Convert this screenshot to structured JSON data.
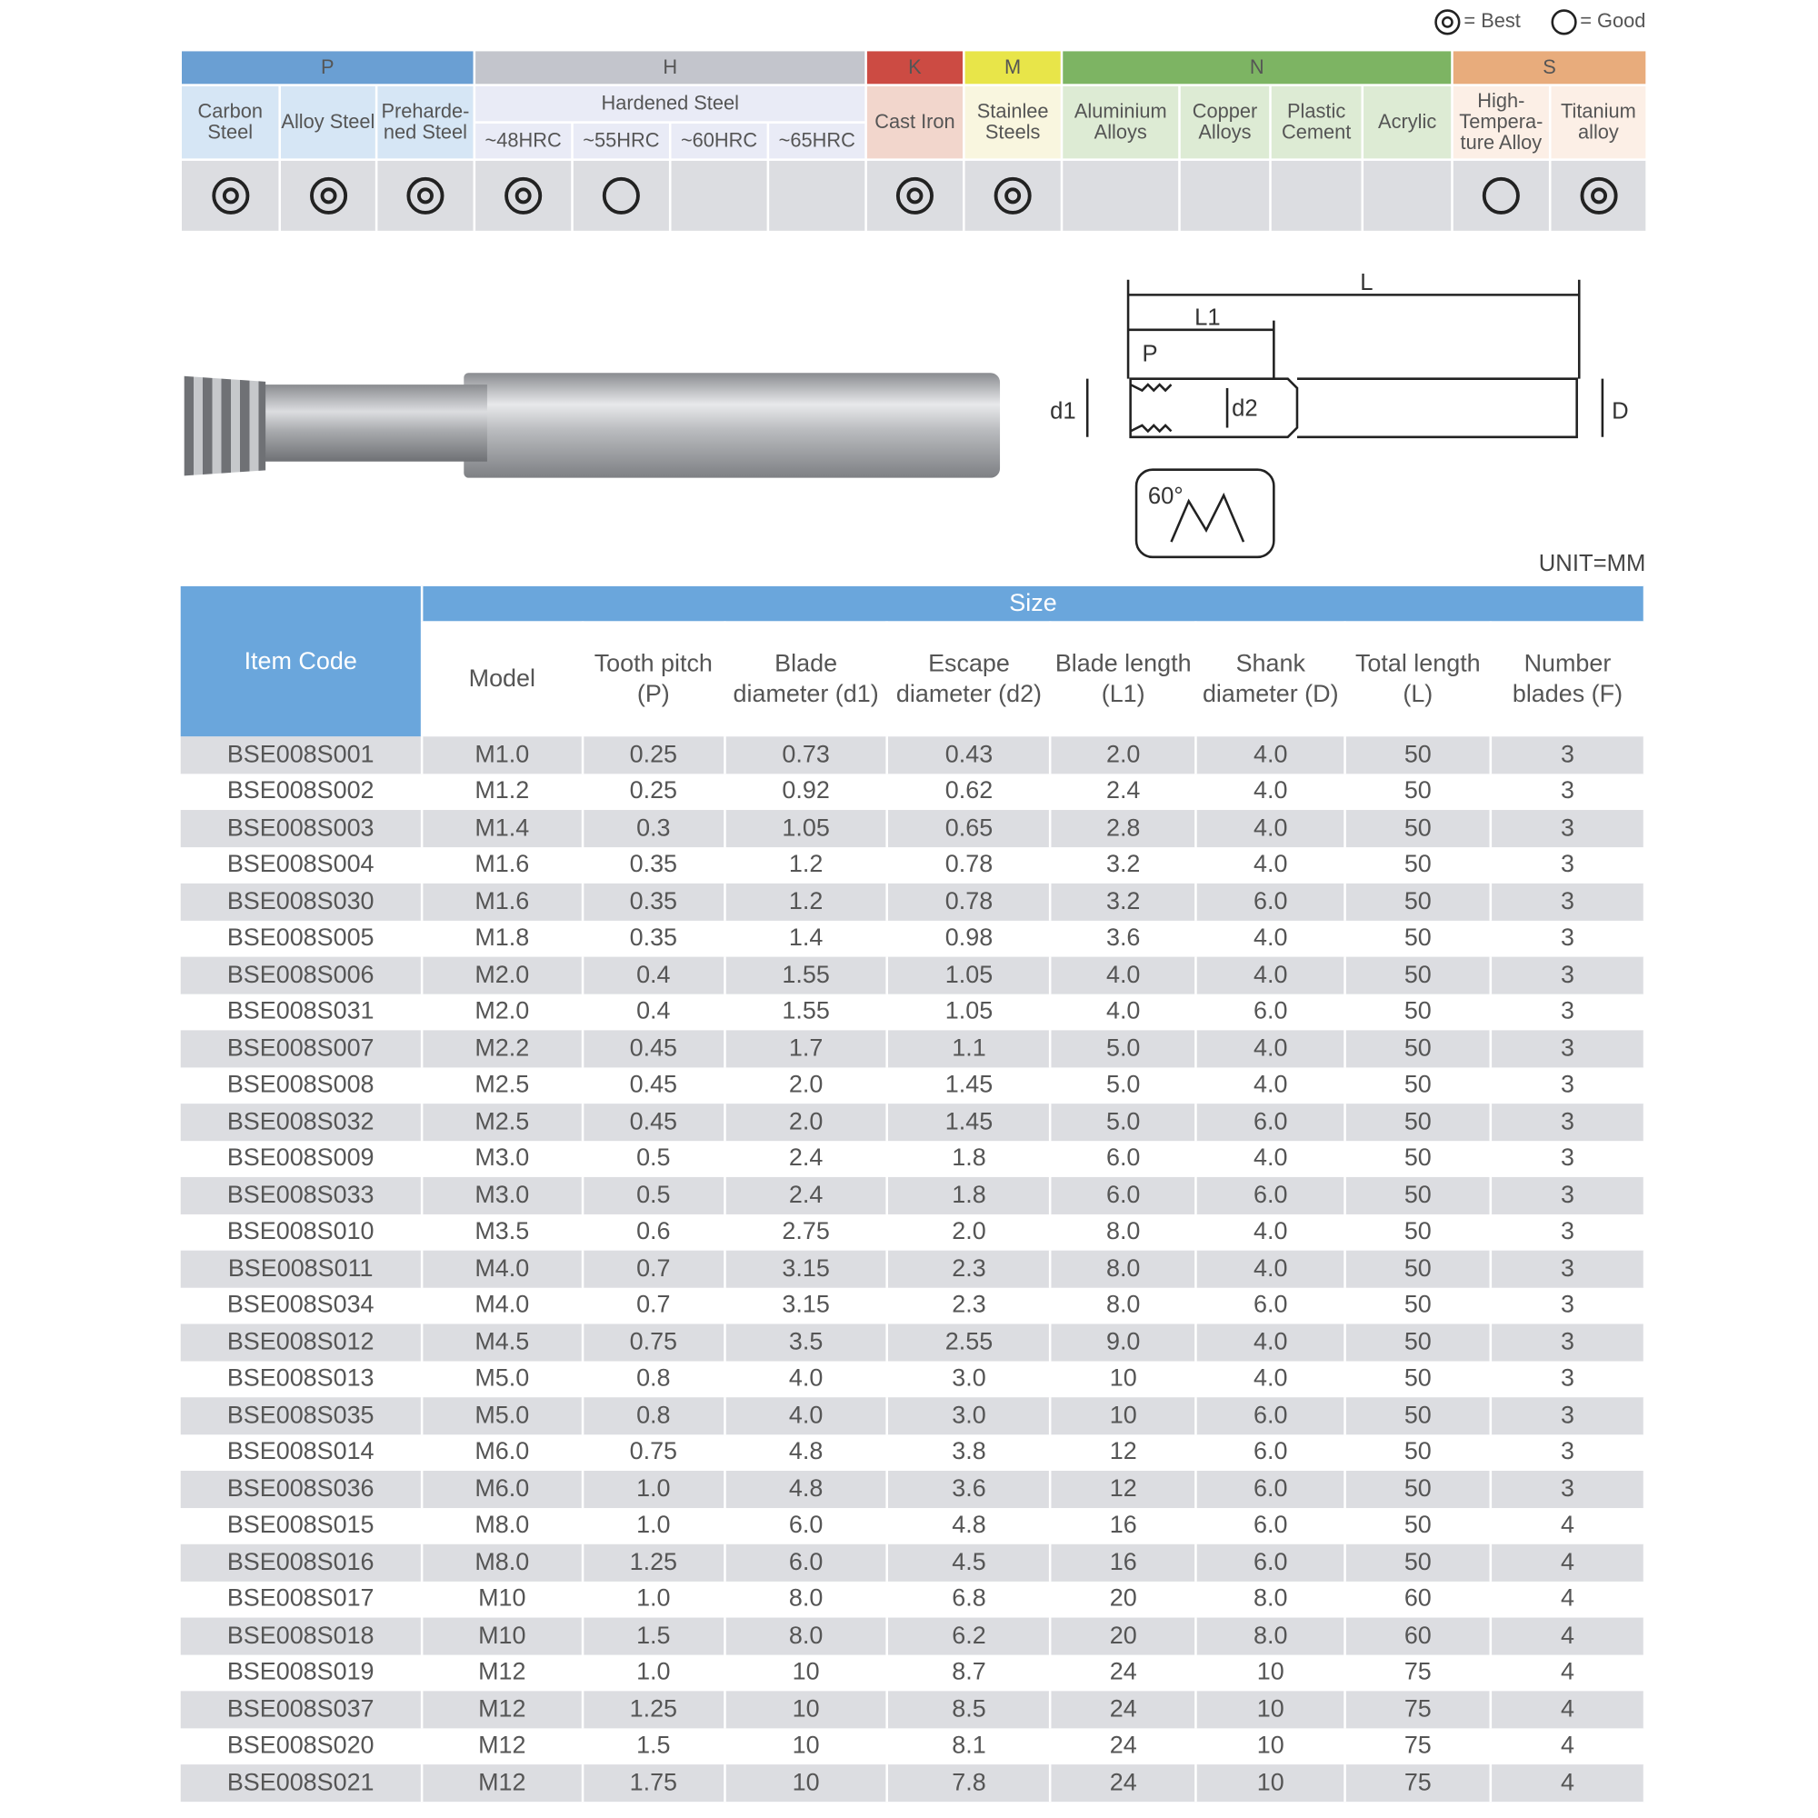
{
  "legend": {
    "best": "= Best",
    "good": "= Good"
  },
  "materials": {
    "groups": [
      {
        "label": "P",
        "color": "#6a9fd3"
      },
      {
        "label": "H",
        "color": "#c3c5cc"
      },
      {
        "label": "K",
        "color": "#cc4b43"
      },
      {
        "label": "M",
        "color": "#e8e549"
      },
      {
        "label": "N",
        "color": "#7db463"
      },
      {
        "label": "S",
        "color": "#e8ac7c"
      }
    ],
    "hardened_label": "Hardened Steel",
    "columns": [
      {
        "label": "Carbon Steel",
        "rating": "best"
      },
      {
        "label": "Alloy Steel",
        "rating": "best"
      },
      {
        "label": "Preharde-ned Steel",
        "rating": "best"
      },
      {
        "label": "~48HRC",
        "rating": "best"
      },
      {
        "label": "~55HRC",
        "rating": "good"
      },
      {
        "label": "~60HRC",
        "rating": ""
      },
      {
        "label": "~65HRC",
        "rating": ""
      },
      {
        "label": "Cast Iron",
        "rating": "best"
      },
      {
        "label": "Stainlee Steels",
        "rating": "best"
      },
      {
        "label": "Aluminium Alloys",
        "rating": ""
      },
      {
        "label": "Copper Alloys",
        "rating": ""
      },
      {
        "label": "Plastic Cement",
        "rating": ""
      },
      {
        "label": "Acrylic",
        "rating": ""
      },
      {
        "label": "High-Tempera-ture Alloy",
        "rating": "good"
      },
      {
        "label": "Titanium alloy",
        "rating": "best"
      }
    ]
  },
  "diagram": {
    "L": "L",
    "L1": "L1",
    "P": "P",
    "d1": "d1",
    "d2": "d2",
    "D": "D",
    "angle": "60°"
  },
  "unit": "UNIT=MM",
  "table": {
    "item_code": "Item Code",
    "size": "Size",
    "headers": [
      "Model",
      "Tooth pitch (P)",
      "Blade diameter (d1)",
      "Escape diameter (d2)",
      "Blade length (L1)",
      "Shank diameter (D)",
      "Total length (L)",
      "Number blades (F)"
    ],
    "rows": [
      [
        "BSE008S001",
        "M1.0",
        "0.25",
        "0.73",
        "0.43",
        "2.0",
        "4.0",
        "50",
        "3"
      ],
      [
        "BSE008S002",
        "M1.2",
        "0.25",
        "0.92",
        "0.62",
        "2.4",
        "4.0",
        "50",
        "3"
      ],
      [
        "BSE008S003",
        "M1.4",
        "0.3",
        "1.05",
        "0.65",
        "2.8",
        "4.0",
        "50",
        "3"
      ],
      [
        "BSE008S004",
        "M1.6",
        "0.35",
        "1.2",
        "0.78",
        "3.2",
        "4.0",
        "50",
        "3"
      ],
      [
        "BSE008S030",
        "M1.6",
        "0.35",
        "1.2",
        "0.78",
        "3.2",
        "6.0",
        "50",
        "3"
      ],
      [
        "BSE008S005",
        "M1.8",
        "0.35",
        "1.4",
        "0.98",
        "3.6",
        "4.0",
        "50",
        "3"
      ],
      [
        "BSE008S006",
        "M2.0",
        "0.4",
        "1.55",
        "1.05",
        "4.0",
        "4.0",
        "50",
        "3"
      ],
      [
        "BSE008S031",
        "M2.0",
        "0.4",
        "1.55",
        "1.05",
        "4.0",
        "6.0",
        "50",
        "3"
      ],
      [
        "BSE008S007",
        "M2.2",
        "0.45",
        "1.7",
        "1.1",
        "5.0",
        "4.0",
        "50",
        "3"
      ],
      [
        "BSE008S008",
        "M2.5",
        "0.45",
        "2.0",
        "1.45",
        "5.0",
        "4.0",
        "50",
        "3"
      ],
      [
        "BSE008S032",
        "M2.5",
        "0.45",
        "2.0",
        "1.45",
        "5.0",
        "6.0",
        "50",
        "3"
      ],
      [
        "BSE008S009",
        "M3.0",
        "0.5",
        "2.4",
        "1.8",
        "6.0",
        "4.0",
        "50",
        "3"
      ],
      [
        "BSE008S033",
        "M3.0",
        "0.5",
        "2.4",
        "1.8",
        "6.0",
        "6.0",
        "50",
        "3"
      ],
      [
        "BSE008S010",
        "M3.5",
        "0.6",
        "2.75",
        "2.0",
        "8.0",
        "4.0",
        "50",
        "3"
      ],
      [
        "BSE008S011",
        "M4.0",
        "0.7",
        "3.15",
        "2.3",
        "8.0",
        "4.0",
        "50",
        "3"
      ],
      [
        "BSE008S034",
        "M4.0",
        "0.7",
        "3.15",
        "2.3",
        "8.0",
        "6.0",
        "50",
        "3"
      ],
      [
        "BSE008S012",
        "M4.5",
        "0.75",
        "3.5",
        "2.55",
        "9.0",
        "4.0",
        "50",
        "3"
      ],
      [
        "BSE008S013",
        "M5.0",
        "0.8",
        "4.0",
        "3.0",
        "10",
        "4.0",
        "50",
        "3"
      ],
      [
        "BSE008S035",
        "M5.0",
        "0.8",
        "4.0",
        "3.0",
        "10",
        "6.0",
        "50",
        "3"
      ],
      [
        "BSE008S014",
        "M6.0",
        "0.75",
        "4.8",
        "3.8",
        "12",
        "6.0",
        "50",
        "3"
      ],
      [
        "BSE008S036",
        "M6.0",
        "1.0",
        "4.8",
        "3.6",
        "12",
        "6.0",
        "50",
        "3"
      ],
      [
        "BSE008S015",
        "M8.0",
        "1.0",
        "6.0",
        "4.8",
        "16",
        "6.0",
        "50",
        "4"
      ],
      [
        "BSE008S016",
        "M8.0",
        "1.25",
        "6.0",
        "4.5",
        "16",
        "6.0",
        "50",
        "4"
      ],
      [
        "BSE008S017",
        "M10",
        "1.0",
        "8.0",
        "6.8",
        "20",
        "8.0",
        "60",
        "4"
      ],
      [
        "BSE008S018",
        "M10",
        "1.5",
        "8.0",
        "6.2",
        "20",
        "8.0",
        "60",
        "4"
      ],
      [
        "BSE008S019",
        "M12",
        "1.0",
        "10",
        "8.7",
        "24",
        "10",
        "75",
        "4"
      ],
      [
        "BSE008S037",
        "M12",
        "1.25",
        "10",
        "8.5",
        "24",
        "10",
        "75",
        "4"
      ],
      [
        "BSE008S020",
        "M12",
        "1.5",
        "10",
        "8.1",
        "24",
        "10",
        "75",
        "4"
      ],
      [
        "BSE008S021",
        "M12",
        "1.75",
        "10",
        "7.8",
        "24",
        "10",
        "75",
        "4"
      ]
    ]
  }
}
